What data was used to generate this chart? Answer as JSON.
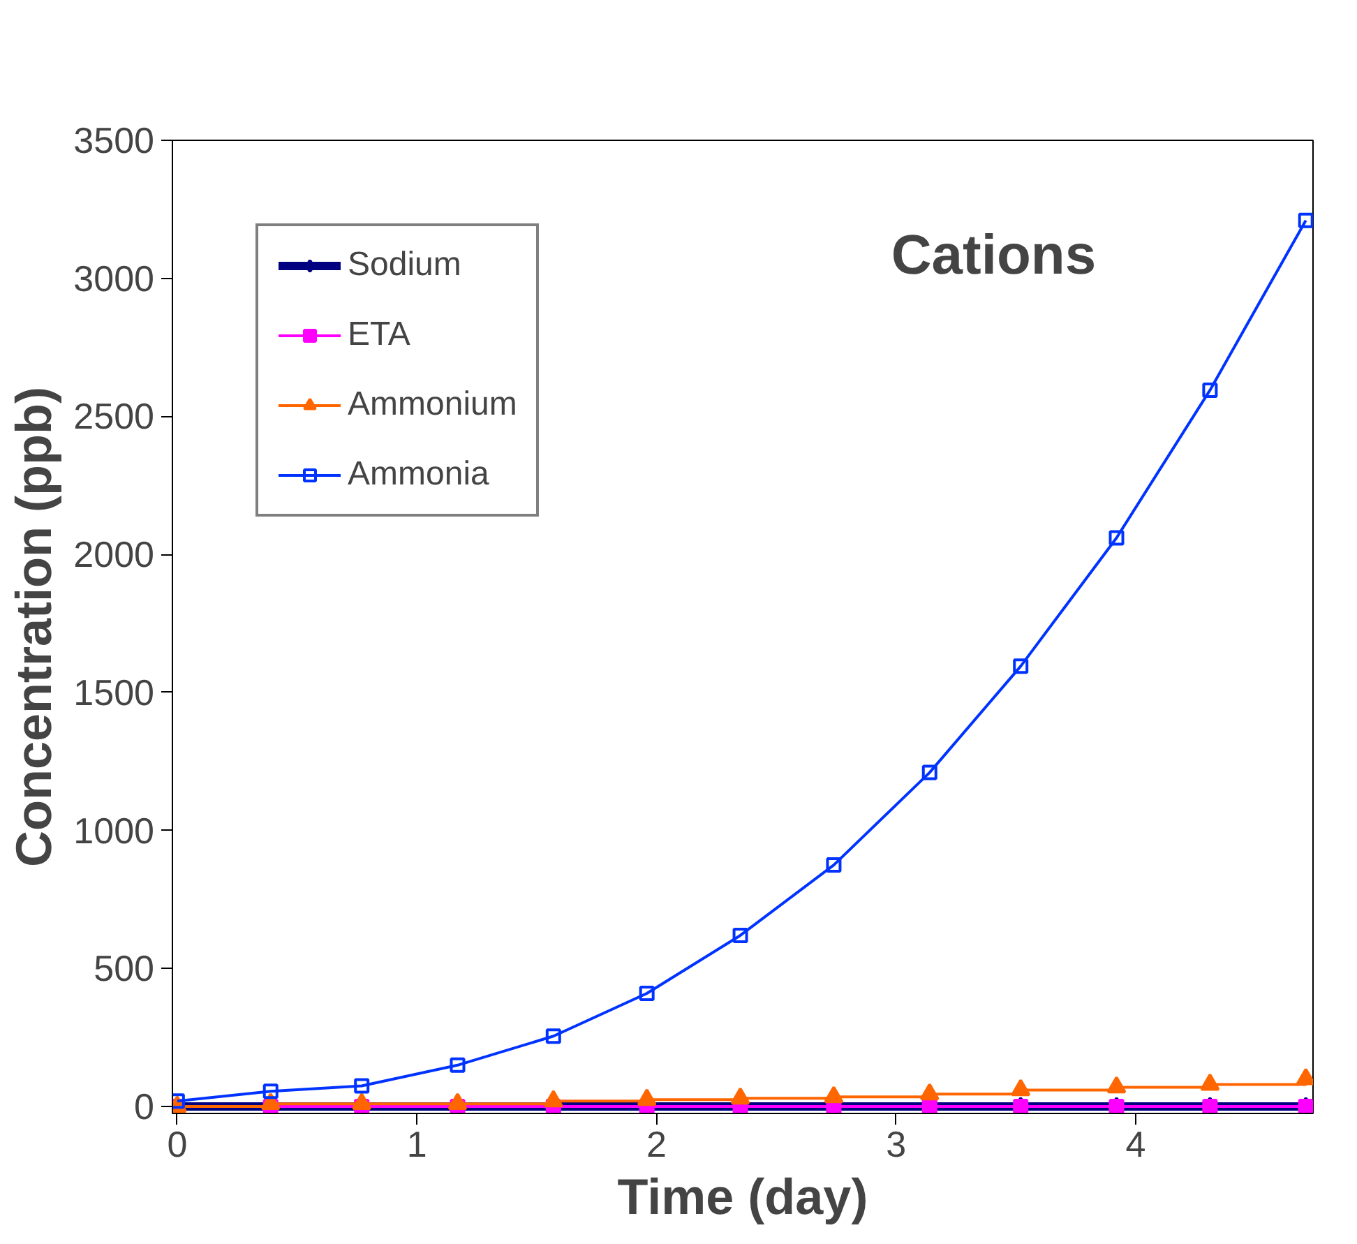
{
  "chart_data": {
    "type": "line",
    "xlabel": "Time (day)",
    "ylabel": "Concentration (ppb)",
    "annotations": [
      "Cations"
    ],
    "x": [
      0,
      0.39,
      0.77,
      1.17,
      1.57,
      1.96,
      2.35,
      2.74,
      3.14,
      3.52,
      3.92,
      4.31,
      4.71
    ],
    "xlim": [
      -0.02,
      4.74
    ],
    "xticks": [
      0,
      1,
      2,
      3,
      4
    ],
    "ylim": [
      -25,
      3500
    ],
    "yticks": [
      0,
      500,
      1000,
      1500,
      2000,
      2500,
      3000,
      3500
    ],
    "grid": false,
    "legend": "top left",
    "series": [
      {
        "name": "Sodium",
        "color": "#000080",
        "marker": "diamond",
        "values": [
          0,
          0,
          0,
          0,
          0,
          0,
          0,
          0,
          0,
          0,
          0,
          0,
          0
        ]
      },
      {
        "name": "ETA",
        "color": "#ff00ff",
        "marker": "square",
        "values": [
          0,
          0,
          0,
          0,
          0,
          0,
          0,
          0,
          0,
          0,
          0,
          0,
          0
        ]
      },
      {
        "name": "Ammonium",
        "color": "#ff6600",
        "marker": "triangle",
        "type": "step",
        "values": [
          0,
          10,
          10,
          10,
          20,
          25,
          30,
          35,
          45,
          60,
          70,
          80,
          100
        ]
      },
      {
        "name": "Ammonia",
        "color": "#0033ff",
        "marker": "square",
        "values": [
          20,
          55,
          75,
          150,
          255,
          410,
          620,
          875,
          1210,
          1595,
          2060,
          2595,
          3210
        ]
      }
    ]
  }
}
